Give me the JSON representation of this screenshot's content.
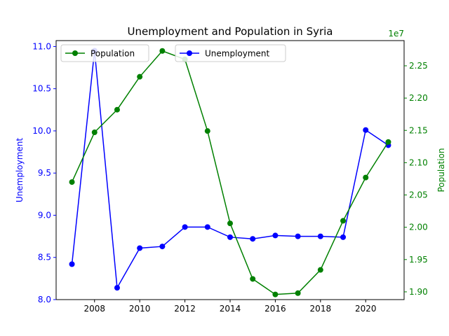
{
  "chart_data": {
    "type": "line",
    "title": "Unemployment and Population in Syria",
    "x": [
      2007,
      2008,
      2009,
      2010,
      2011,
      2012,
      2013,
      2014,
      2015,
      2016,
      2017,
      2018,
      2019,
      2020,
      2021
    ],
    "xlim": [
      2006.3,
      2021.7
    ],
    "xticks": [
      2008,
      2010,
      2012,
      2014,
      2016,
      2018,
      2020
    ],
    "series": [
      {
        "name": "Unemployment",
        "axis": "left",
        "color": "#0000ff",
        "values": [
          8.42,
          10.95,
          8.14,
          8.61,
          8.63,
          8.86,
          8.86,
          8.74,
          8.72,
          8.76,
          8.75,
          8.75,
          8.74,
          10.01,
          9.83
        ]
      },
      {
        "name": "Population",
        "axis": "right",
        "color": "#008000",
        "values": [
          20700000,
          21470000,
          21820000,
          22330000,
          22730000,
          22600000,
          21490000,
          20060000,
          19200000,
          18960000,
          18980000,
          19340000,
          20100000,
          20770000,
          21320000
        ]
      }
    ],
    "ylabel_left": "Unemployment",
    "ylim_left": [
      8.0,
      11.07
    ],
    "yticks_left": [
      "8.0",
      "8.5",
      "9.0",
      "9.5",
      "10.0",
      "10.5",
      "11.0"
    ],
    "ylabel_right": "Population",
    "ylim_right": [
      18880000,
      22890000
    ],
    "yticks_right": [
      "1.90",
      "1.95",
      "2.00",
      "2.05",
      "2.10",
      "2.15",
      "2.20",
      "2.25"
    ],
    "right_offset_label": "1e7",
    "legend_left_placement": "upper-left",
    "legend_right_placement": "upper-center",
    "grid": false
  }
}
